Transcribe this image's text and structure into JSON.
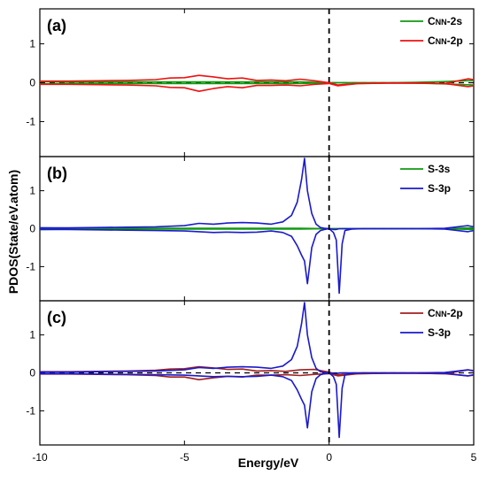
{
  "chart_data": {
    "type": "line",
    "xlabel": "Energy/eV",
    "ylabel": "PDOS(State/eV.atom)",
    "xlim": [
      -10,
      5
    ],
    "ylim": [
      -1.9,
      1.9
    ],
    "x_ticks": [
      -10,
      -5,
      0,
      5
    ],
    "y_ticks": [
      1,
      0,
      -1
    ],
    "fermi_level": 0,
    "legend_position": "top-right",
    "colors": {
      "green": "#119911",
      "red": "#ee1111",
      "blue": "#1a1acc",
      "brown": "#a02020"
    },
    "panels": [
      {
        "label": "(a)",
        "series": [
          {
            "name": "C_NN-2s",
            "legend_main": "C",
            "legend_sub": "NN",
            "legend_suffix": "-2s",
            "color": "#119911",
            "x": [
              -10,
              -9,
              -8,
              -7,
              -6,
              -5,
              -4,
              -3,
              -2,
              -1,
              -0.5,
              0,
              0.5,
              1,
              2,
              3,
              4,
              5
            ],
            "up": [
              0.03,
              0.02,
              0.02,
              0.02,
              0.02,
              0.02,
              0.02,
              0.02,
              0.02,
              0.02,
              0.01,
              0,
              0,
              0,
              0,
              0.01,
              0.03,
              0.06
            ],
            "down": [
              -0.03,
              -0.02,
              -0.02,
              -0.02,
              -0.02,
              -0.02,
              -0.02,
              -0.02,
              -0.02,
              -0.02,
              -0.01,
              0,
              0,
              0,
              0,
              -0.01,
              -0.03,
              -0.06
            ]
          },
          {
            "name": "C_NN-2p",
            "legend_main": "C",
            "legend_sub": "NN",
            "legend_suffix": "-2p",
            "color": "#ee1111",
            "x": [
              -10,
              -9,
              -8,
              -7,
              -6,
              -5.5,
              -5,
              -4.5,
              -4,
              -3.5,
              -3,
              -2.5,
              -2,
              -1.5,
              -1,
              -0.5,
              0,
              0.3,
              1,
              2,
              3,
              4,
              4.8,
              5
            ],
            "up": [
              0.04,
              0.04,
              0.05,
              0.06,
              0.08,
              0.12,
              0.13,
              0.19,
              0.15,
              0.1,
              0.12,
              0.06,
              0.07,
              0.05,
              0.09,
              0.05,
              0,
              -0.06,
              -0.02,
              -0.01,
              -0.01,
              -0.02,
              0.1,
              0.08
            ],
            "down": [
              -0.04,
              -0.04,
              -0.05,
              -0.06,
              -0.08,
              -0.12,
              -0.13,
              -0.22,
              -0.15,
              -0.1,
              -0.13,
              -0.07,
              -0.07,
              -0.06,
              -0.08,
              -0.04,
              -0.02,
              -0.08,
              -0.02,
              -0.01,
              -0.01,
              -0.02,
              -0.1,
              -0.08
            ]
          }
        ]
      },
      {
        "label": "(b)",
        "series": [
          {
            "name": "S-3s",
            "legend_main": "S-3s",
            "legend_sub": "",
            "legend_suffix": "",
            "color": "#119911",
            "x": [
              -10,
              -9,
              -8,
              -7,
              -6,
              -5,
              -4,
              -3,
              -2,
              -1,
              0,
              1,
              2,
              3,
              4,
              5
            ],
            "up": [
              0.02,
              0.01,
              0.01,
              0.01,
              0.01,
              0.01,
              0.01,
              0.01,
              0.01,
              0.01,
              0,
              0,
              0,
              0,
              0,
              0.02
            ],
            "down": [
              -0.02,
              -0.01,
              -0.01,
              -0.01,
              -0.01,
              -0.01,
              -0.01,
              -0.01,
              -0.01,
              -0.01,
              0,
              0,
              0,
              0,
              0,
              -0.02
            ]
          },
          {
            "name": "S-3p",
            "legend_main": "S-3p",
            "legend_sub": "",
            "legend_suffix": "",
            "color": "#1a1acc",
            "x": [
              -10,
              -9,
              -8,
              -7,
              -6,
              -5,
              -4.5,
              -4,
              -3.5,
              -3,
              -2.5,
              -2,
              -1.6,
              -1.3,
              -1.1,
              -0.95,
              -0.85,
              -0.75,
              -0.6,
              -0.45,
              -0.3,
              -0.15,
              0,
              0.15,
              0.25,
              0.35,
              0.45,
              0.55,
              0.8,
              1.2,
              2,
              3,
              4,
              4.8,
              5
            ],
            "up": [
              0.02,
              0.02,
              0.03,
              0.04,
              0.05,
              0.08,
              0.14,
              0.12,
              0.15,
              0.16,
              0.15,
              0.12,
              0.18,
              0.35,
              0.7,
              1.3,
              1.85,
              1.0,
              0.4,
              0.12,
              0.03,
              0.01,
              0,
              -0.02,
              -0.02,
              0,
              0,
              0,
              0,
              0,
              0,
              0,
              0.01,
              0.08,
              0.05
            ],
            "down": [
              -0.02,
              -0.02,
              -0.03,
              -0.04,
              -0.05,
              -0.06,
              -0.08,
              -0.1,
              -0.09,
              -0.1,
              -0.09,
              -0.06,
              -0.1,
              -0.2,
              -0.45,
              -0.7,
              -0.85,
              -1.45,
              -0.5,
              -0.15,
              -0.05,
              -0.02,
              0,
              -0.1,
              -0.3,
              -1.7,
              -0.4,
              -0.05,
              -0.01,
              0,
              0,
              0,
              -0.01,
              -0.08,
              -0.05
            ]
          }
        ]
      },
      {
        "label": "(c)",
        "series": [
          {
            "name": "C_NN-2p",
            "legend_main": "C",
            "legend_sub": "NN",
            "legend_suffix": "-2p",
            "color": "#a02020",
            "x": [
              -10,
              -9,
              -8,
              -7,
              -6,
              -5.5,
              -5,
              -4.5,
              -4,
              -3.5,
              -3,
              -2.5,
              -2,
              -1.5,
              -1,
              -0.5,
              0,
              0.3,
              1,
              2,
              3,
              4,
              4.8,
              5
            ],
            "up": [
              0.03,
              0.03,
              0.04,
              0.05,
              0.07,
              0.1,
              0.11,
              0.16,
              0.13,
              0.09,
              0.1,
              0.05,
              0.06,
              0.04,
              0.08,
              0.09,
              0.02,
              -0.05,
              -0.02,
              -0.01,
              -0.01,
              -0.02,
              0.08,
              0.06
            ],
            "down": [
              -0.03,
              -0.03,
              -0.04,
              -0.05,
              -0.07,
              -0.11,
              -0.11,
              -0.18,
              -0.13,
              -0.09,
              -0.11,
              -0.06,
              -0.06,
              -0.05,
              -0.07,
              -0.04,
              -0.02,
              -0.08,
              -0.02,
              -0.01,
              -0.01,
              -0.02,
              -0.08,
              -0.06
            ]
          },
          {
            "name": "S-3p",
            "legend_main": "S-3p",
            "legend_sub": "",
            "legend_suffix": "",
            "color": "#1a1acc",
            "x": [
              -10,
              -9,
              -8,
              -7,
              -6,
              -5,
              -4.5,
              -4,
              -3.5,
              -3,
              -2.5,
              -2,
              -1.6,
              -1.3,
              -1.1,
              -0.95,
              -0.85,
              -0.75,
              -0.6,
              -0.45,
              -0.3,
              -0.15,
              0,
              0.15,
              0.25,
              0.35,
              0.45,
              0.55,
              0.8,
              1.2,
              2,
              3,
              4,
              4.8,
              5
            ],
            "up": [
              0.02,
              0.02,
              0.03,
              0.04,
              0.05,
              0.08,
              0.14,
              0.12,
              0.15,
              0.16,
              0.15,
              0.12,
              0.18,
              0.35,
              0.7,
              1.3,
              1.85,
              1.0,
              0.4,
              0.12,
              0.03,
              0.01,
              0,
              -0.02,
              -0.02,
              0,
              0,
              0,
              0,
              0,
              0,
              0,
              0.01,
              0.08,
              0.05
            ],
            "down": [
              -0.02,
              -0.02,
              -0.03,
              -0.04,
              -0.05,
              -0.06,
              -0.08,
              -0.1,
              -0.09,
              -0.1,
              -0.09,
              -0.06,
              -0.1,
              -0.2,
              -0.45,
              -0.7,
              -0.85,
              -1.45,
              -0.5,
              -0.15,
              -0.05,
              -0.02,
              0,
              -0.1,
              -0.3,
              -1.7,
              -0.4,
              -0.05,
              -0.01,
              0,
              0,
              0,
              -0.01,
              -0.08,
              -0.05
            ]
          }
        ]
      }
    ]
  }
}
